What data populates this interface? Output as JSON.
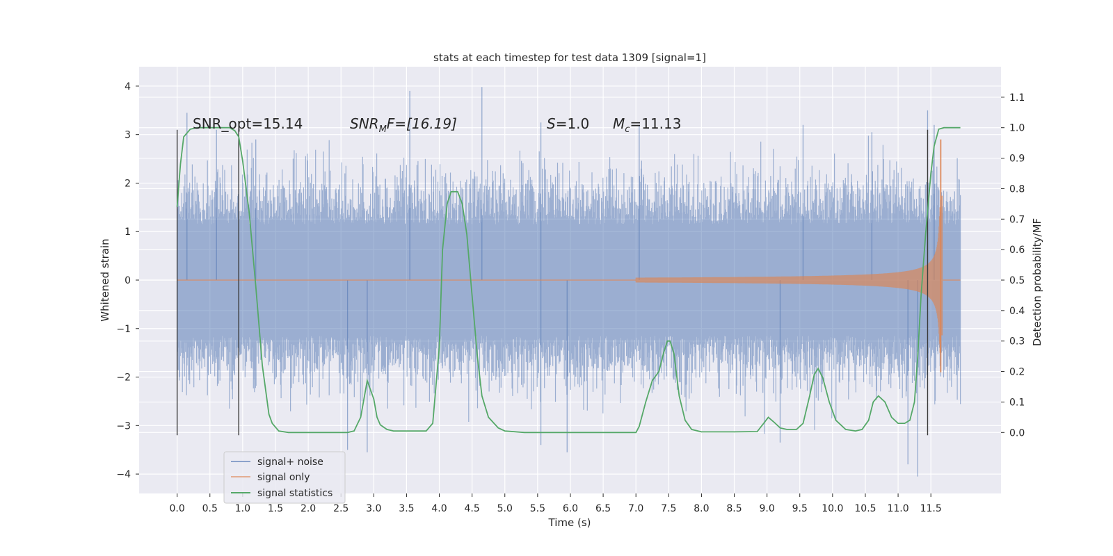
{
  "chart_data": {
    "type": "line",
    "title": "stats at each timestep for test data 1309 [signal=1]",
    "xlabel": "Time (s)",
    "ylabel": "Whitened strain",
    "ylabel_right": "Detection probability/MF",
    "xlim": [
      -0.58,
      12.57
    ],
    "ylim": [
      -4.4,
      4.4
    ],
    "ylim_right": [
      -0.2,
      1.2
    ],
    "x_ticks": [
      "0.0",
      "0.5",
      "1.0",
      "1.5",
      "2.0",
      "2.5",
      "3.0",
      "3.5",
      "4.0",
      "4.5",
      "5.0",
      "5.5",
      "6.0",
      "6.5",
      "7.0",
      "7.5",
      "8.0",
      "8.5",
      "9.0",
      "9.5",
      "10.0",
      "10.5",
      "11.0",
      "11.5"
    ],
    "y_ticks": [
      "4",
      "3",
      "2",
      "1",
      "0",
      "−1",
      "−2",
      "−3",
      "−4"
    ],
    "y_right_ticks": [
      "1.1",
      "1.0",
      "0.9",
      "0.8",
      "0.7",
      "0.6",
      "0.5",
      "0.4",
      "0.3",
      "0.2",
      "0.1",
      "0.0"
    ],
    "grid": true,
    "legend_position": "lower-left",
    "annotations": {
      "snr_opt": "SNR_opt=15.14",
      "snr_mf_base": "SNR",
      "snr_mf_sub": "M",
      "snr_mf_rest": "F=[16.19]",
      "s_sym": "S",
      "s_val": "=1.0",
      "mc_sym": "M",
      "mc_sub": "c",
      "mc_val": "=11.13"
    },
    "vertical_markers_x": [
      0.0,
      0.94,
      11.45
    ],
    "series": [
      {
        "name": "signal+ noise",
        "color": "#4c72b0",
        "description_band": {
          "x_range": [
            0.0,
            11.95
          ],
          "typical_envelope": [
            -1.9,
            1.9
          ],
          "peaks_high": [
            [
              0.15,
              3.45
            ],
            [
              0.6,
              3.1
            ],
            [
              1.2,
              2.9
            ],
            [
              3.55,
              3.9
            ],
            [
              4.65,
              3.98
            ],
            [
              5.55,
              3.25
            ],
            [
              7.05,
              3.2
            ],
            [
              9.55,
              3.2
            ],
            [
              10.6,
              3.05
            ],
            [
              11.45,
              3.5
            ],
            [
              11.55,
              3.2
            ]
          ],
          "peaks_low": [
            [
              2.6,
              -3.5
            ],
            [
              2.9,
              -3.55
            ],
            [
              5.55,
              -3.4
            ],
            [
              5.95,
              -3.55
            ],
            [
              9.2,
              -3.35
            ],
            [
              11.3,
              -4.05
            ],
            [
              11.15,
              -3.8
            ]
          ]
        }
      },
      {
        "name": "signal only",
        "color": "#dd8452",
        "chirp": {
          "start": 7.0,
          "merger": 11.65,
          "end": 11.95,
          "peak_amplitude": 2.9,
          "min_amplitude": -1.9
        }
      },
      {
        "name": "signal statistics",
        "color": "#55a868",
        "axis": "right",
        "points": [
          [
            0.0,
            0.74
          ],
          [
            0.05,
            0.88
          ],
          [
            0.1,
            0.97
          ],
          [
            0.2,
            0.995
          ],
          [
            0.3,
            1.0
          ],
          [
            0.6,
            1.0
          ],
          [
            0.8,
            1.0
          ],
          [
            0.88,
            0.99
          ],
          [
            0.94,
            0.97
          ],
          [
            1.0,
            0.89
          ],
          [
            1.1,
            0.72
          ],
          [
            1.2,
            0.48
          ],
          [
            1.3,
            0.22
          ],
          [
            1.4,
            0.06
          ],
          [
            1.45,
            0.03
          ],
          [
            1.55,
            0.005
          ],
          [
            1.7,
            0.0
          ],
          [
            2.6,
            0.0
          ],
          [
            2.7,
            0.005
          ],
          [
            2.8,
            0.05
          ],
          [
            2.9,
            0.17
          ],
          [
            3.0,
            0.11
          ],
          [
            3.05,
            0.05
          ],
          [
            3.1,
            0.025
          ],
          [
            3.2,
            0.01
          ],
          [
            3.3,
            0.005
          ],
          [
            3.8,
            0.005
          ],
          [
            3.9,
            0.03
          ],
          [
            4.0,
            0.28
          ],
          [
            4.05,
            0.6
          ],
          [
            4.12,
            0.75
          ],
          [
            4.18,
            0.79
          ],
          [
            4.28,
            0.79
          ],
          [
            4.35,
            0.75
          ],
          [
            4.42,
            0.65
          ],
          [
            4.5,
            0.45
          ],
          [
            4.58,
            0.25
          ],
          [
            4.65,
            0.12
          ],
          [
            4.75,
            0.05
          ],
          [
            4.9,
            0.015
          ],
          [
            5.0,
            0.005
          ],
          [
            5.3,
            0.0
          ],
          [
            7.0,
            0.0
          ],
          [
            7.05,
            0.02
          ],
          [
            7.15,
            0.1
          ],
          [
            7.25,
            0.17
          ],
          [
            7.35,
            0.2
          ],
          [
            7.42,
            0.26
          ],
          [
            7.48,
            0.3
          ],
          [
            7.52,
            0.3
          ],
          [
            7.58,
            0.26
          ],
          [
            7.66,
            0.12
          ],
          [
            7.75,
            0.04
          ],
          [
            7.85,
            0.01
          ],
          [
            8.0,
            0.002
          ],
          [
            8.5,
            0.002
          ],
          [
            8.85,
            0.003
          ],
          [
            8.95,
            0.03
          ],
          [
            9.02,
            0.05
          ],
          [
            9.1,
            0.035
          ],
          [
            9.2,
            0.015
          ],
          [
            9.3,
            0.01
          ],
          [
            9.45,
            0.01
          ],
          [
            9.55,
            0.03
          ],
          [
            9.65,
            0.12
          ],
          [
            9.72,
            0.19
          ],
          [
            9.78,
            0.21
          ],
          [
            9.85,
            0.18
          ],
          [
            9.95,
            0.1
          ],
          [
            10.05,
            0.04
          ],
          [
            10.2,
            0.01
          ],
          [
            10.35,
            0.005
          ],
          [
            10.45,
            0.01
          ],
          [
            10.55,
            0.04
          ],
          [
            10.62,
            0.1
          ],
          [
            10.7,
            0.12
          ],
          [
            10.8,
            0.1
          ],
          [
            10.9,
            0.05
          ],
          [
            11.0,
            0.03
          ],
          [
            11.1,
            0.03
          ],
          [
            11.18,
            0.04
          ],
          [
            11.25,
            0.1
          ],
          [
            11.3,
            0.25
          ],
          [
            11.35,
            0.45
          ],
          [
            11.42,
            0.65
          ],
          [
            11.5,
            0.85
          ],
          [
            11.55,
            0.94
          ],
          [
            11.62,
            0.995
          ],
          [
            11.7,
            1.0
          ],
          [
            11.95,
            1.0
          ]
        ]
      }
    ]
  }
}
